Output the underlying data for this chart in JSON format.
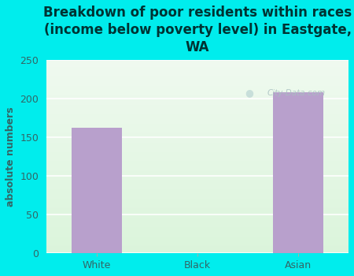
{
  "categories": [
    "White",
    "Black",
    "Asian"
  ],
  "values": [
    163,
    0,
    209
  ],
  "bar_color": "#b8a0cc",
  "title": "Breakdown of poor residents within races\n(income below poverty level) in Eastgate,\nWA",
  "ylabel": "absolute numbers",
  "ylim": [
    0,
    250
  ],
  "yticks": [
    0,
    50,
    100,
    150,
    200,
    250
  ],
  "bg_color": "#00eded",
  "plot_bg_top": "#eaf5ea",
  "plot_bg_bottom": "#f5fdf5",
  "title_fontsize": 12,
  "label_fontsize": 9,
  "tick_fontsize": 9,
  "title_color": "#003333",
  "tick_color": "#336666",
  "watermark": "City-Data.com",
  "grid_color": "#d0e8d0"
}
